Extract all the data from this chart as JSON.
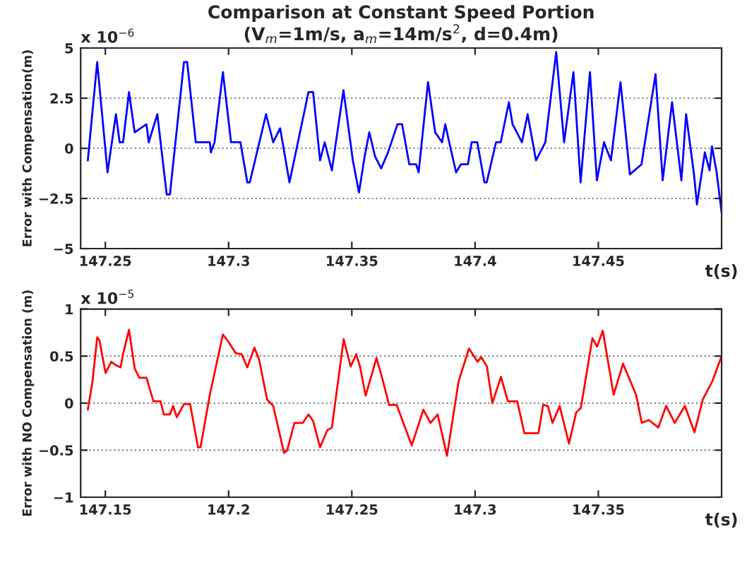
{
  "chart_data": [
    {
      "type": "line",
      "title": "Comparison at Constant Speed Portion",
      "subtitle": "(V$_{m}$=1m/s, a$_{m}$=14m/s$^{2}$, d=0.4m)",
      "xlabel": "t(s)",
      "ylabel": "Error with Compensation(m)",
      "annotations": [
        "x 10$^{−6}$"
      ],
      "x": [
        147.2429,
        147.2467,
        147.2509,
        147.2543,
        147.2558,
        147.2572,
        147.2596,
        147.2619,
        147.2667,
        147.2676,
        147.2711,
        147.2749,
        147.2762,
        147.2819,
        147.2832,
        147.2867,
        147.2924,
        147.2928,
        147.2943,
        147.2977,
        147.301,
        147.3048,
        147.3076,
        147.3086,
        147.3152,
        147.3181,
        147.3209,
        147.3219,
        147.3247,
        147.3324,
        147.3343,
        147.3371,
        147.339,
        147.3419,
        147.3466,
        147.3504,
        147.3529,
        147.3552,
        147.3571,
        147.3594,
        147.3619,
        147.3647,
        147.3685,
        147.3704,
        147.3733,
        147.3761,
        147.3771,
        147.3809,
        147.3838,
        147.3866,
        147.3879,
        147.3895,
        147.3923,
        147.3942,
        147.3971,
        147.3986,
        147.4009,
        147.4038,
        147.4047,
        147.4085,
        147.4104,
        147.4137,
        147.4152,
        147.419,
        147.4213,
        147.4247,
        147.4285,
        147.4329,
        147.4361,
        147.4399,
        147.4428,
        147.4466,
        147.4494,
        147.4523,
        147.4551,
        147.459,
        147.4628,
        147.4675,
        147.4732,
        147.4761,
        147.4799,
        147.4837,
        147.4856,
        147.4888,
        147.49,
        147.4932,
        147.4951,
        147.4961,
        147.498,
        147.5
      ],
      "series": [
        {
          "color": "#0000ff",
          "values": [
            -0.6,
            4.3,
            -1.2,
            1.7,
            0.3,
            0.3,
            2.8,
            0.8,
            1.2,
            0.3,
            1.7,
            -2.3,
            -2.3,
            4.3,
            4.3,
            0.3,
            0.3,
            -0.2,
            0.3,
            3.8,
            0.3,
            0.3,
            -1.7,
            -1.7,
            1.7,
            0.3,
            1.0,
            0.3,
            -1.7,
            2.8,
            2.8,
            -0.6,
            0.3,
            -1.1,
            2.9,
            -0.6,
            -2.2,
            -0.4,
            0.8,
            -0.4,
            -1.0,
            -0.2,
            1.2,
            1.2,
            -0.8,
            -0.8,
            -1.2,
            3.3,
            0.8,
            0.3,
            1.2,
            0.3,
            -1.2,
            -0.8,
            -0.8,
            0.3,
            0.3,
            -1.7,
            -1.7,
            0.3,
            0.3,
            2.3,
            1.2,
            0.3,
            1.7,
            -0.6,
            0.3,
            4.8,
            0.3,
            3.8,
            -1.7,
            3.8,
            -1.6,
            0.3,
            -0.6,
            3.3,
            -1.3,
            -0.8,
            3.7,
            -1.6,
            2.3,
            -1.6,
            1.7,
            -1.3,
            -2.8,
            -0.2,
            -1.1,
            0.1,
            -1.2,
            -3.2
          ]
        }
      ],
      "xlim": [
        147.24,
        147.5
      ],
      "ylim": [
        -5,
        5
      ],
      "xticks": [
        147.25,
        147.3,
        147.35,
        147.4,
        147.45
      ],
      "yticks": [
        {
          "value": -5,
          "label": "−5"
        },
        {
          "value": -2.5,
          "label": "−2.5"
        },
        0,
        2.5,
        5
      ],
      "grid": "y",
      "line_style": "solid"
    },
    {
      "type": "line",
      "xlabel": "t(s)",
      "ylabel": "Error with NO Compensation (m)",
      "annotations": [
        "x 10$^{−5}$"
      ],
      "x": [
        147.1429,
        147.1448,
        147.1467,
        147.1476,
        147.1501,
        147.1524,
        147.1539,
        147.1562,
        147.1571,
        147.1596,
        147.1619,
        147.1638,
        147.1667,
        147.1695,
        147.1724,
        147.1737,
        147.1762,
        147.1775,
        147.179,
        147.1819,
        147.1844,
        147.1876,
        147.1886,
        147.1924,
        147.1977,
        147.2,
        147.2029,
        147.2053,
        147.2076,
        147.2105,
        147.2124,
        147.2156,
        147.2181,
        147.2225,
        147.2238,
        147.2267,
        147.2301,
        147.2324,
        147.2343,
        147.2371,
        147.24,
        147.2419,
        147.2467,
        147.2495,
        147.2518,
        147.2533,
        147.2556,
        147.26,
        147.2629,
        147.2651,
        147.2682,
        147.2743,
        147.279,
        147.2819,
        147.2848,
        147.2886,
        147.2933,
        147.2975,
        147.301,
        147.3025,
        147.3048,
        147.307,
        147.3105,
        147.3133,
        147.3171,
        147.32,
        147.3257,
        147.3276,
        147.3295,
        147.3314,
        147.3343,
        147.3381,
        147.341,
        147.3429,
        147.3476,
        147.3495,
        147.3518,
        147.3562,
        147.36,
        147.3638,
        147.3653,
        147.3676,
        147.3705,
        147.3743,
        147.3775,
        147.381,
        147.3851,
        147.389,
        147.3924,
        147.3962,
        147.4
      ],
      "series": [
        {
          "color": "#ff0000",
          "values": [
            -0.07,
            0.23,
            0.7,
            0.67,
            0.32,
            0.44,
            0.41,
            0.38,
            0.51,
            0.78,
            0.37,
            0.27,
            0.27,
            0.02,
            0.02,
            -0.12,
            -0.12,
            -0.03,
            -0.15,
            -0.01,
            -0.01,
            -0.47,
            -0.47,
            0.09,
            0.73,
            0.65,
            0.53,
            0.52,
            0.38,
            0.59,
            0.46,
            0.04,
            -0.03,
            -0.53,
            -0.5,
            -0.21,
            -0.21,
            -0.12,
            -0.19,
            -0.47,
            -0.29,
            -0.26,
            0.68,
            0.39,
            0.52,
            0.39,
            0.08,
            0.48,
            0.21,
            -0.02,
            -0.02,
            -0.45,
            -0.07,
            -0.21,
            -0.12,
            -0.56,
            0.23,
            0.58,
            0.44,
            0.49,
            0.39,
            0.0,
            0.28,
            0.02,
            0.02,
            -0.32,
            -0.32,
            -0.02,
            -0.03,
            -0.21,
            -0.03,
            -0.43,
            -0.1,
            -0.05,
            0.69,
            0.6,
            0.77,
            0.09,
            0.42,
            0.18,
            0.09,
            -0.21,
            -0.18,
            -0.26,
            -0.03,
            -0.21,
            -0.03,
            -0.31,
            0.04,
            0.23,
            0.5
          ]
        }
      ],
      "xlim": [
        147.14,
        147.4
      ],
      "ylim": [
        -1,
        1
      ],
      "xticks": [
        147.15,
        147.2,
        147.25,
        147.3,
        147.35
      ],
      "yticks": [
        {
          "value": -1,
          "label": "−1"
        },
        {
          "value": -0.5,
          "label": "−0.5"
        },
        0,
        0.5,
        1
      ],
      "grid": "y",
      "line_style": "solid"
    }
  ]
}
